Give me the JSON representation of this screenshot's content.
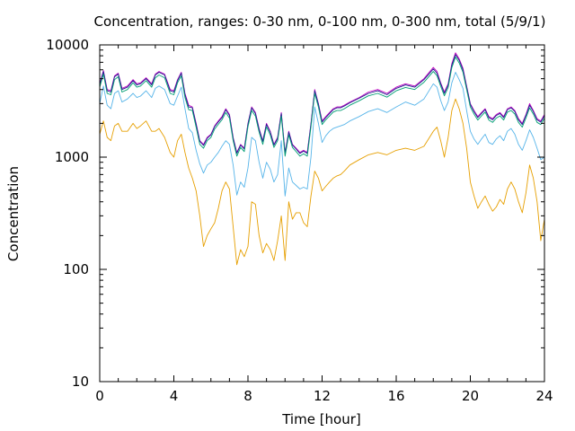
{
  "chart_data": {
    "type": "line",
    "title": "Concentration, ranges: 0-30 nm, 0-100 nm, 0-300 nm, total (5/9/1)",
    "xlabel": "Time [hour]",
    "ylabel": "Concentration",
    "xlim": [
      0,
      24
    ],
    "ylim": [
      10,
      10000
    ],
    "yscale": "log",
    "grid": false,
    "legend": "none",
    "x_ticks": [
      "0",
      "4",
      "8",
      "12",
      "16",
      "20",
      "24"
    ],
    "x_tick_values": [
      0,
      4,
      8,
      12,
      16,
      20,
      24
    ],
    "y_ticks": [
      "10",
      "100",
      "1000",
      "10000"
    ],
    "y_tick_values": [
      10,
      100,
      1000,
      10000
    ],
    "x": [
      0,
      0.2,
      0.4,
      0.6,
      0.8,
      1.0,
      1.2,
      1.5,
      1.8,
      2.0,
      2.2,
      2.5,
      2.8,
      3.0,
      3.2,
      3.5,
      3.8,
      4.0,
      4.2,
      4.4,
      4.6,
      4.8,
      5.0,
      5.2,
      5.4,
      5.6,
      5.8,
      6.0,
      6.2,
      6.4,
      6.6,
      6.8,
      7.0,
      7.2,
      7.4,
      7.6,
      7.8,
      8.0,
      8.2,
      8.4,
      8.6,
      8.8,
      9.0,
      9.2,
      9.4,
      9.6,
      9.8,
      10.0,
      10.2,
      10.4,
      10.6,
      10.8,
      11.0,
      11.2,
      11.4,
      11.6,
      11.8,
      12.0,
      12.2,
      12.4,
      12.6,
      12.8,
      13.0,
      13.2,
      13.5,
      14.0,
      14.5,
      15.0,
      15.5,
      16.0,
      16.5,
      17.0,
      17.5,
      18.0,
      18.2,
      18.4,
      18.6,
      18.8,
      19.0,
      19.2,
      19.4,
      19.6,
      19.8,
      20.0,
      20.2,
      20.4,
      20.6,
      20.8,
      21.0,
      21.2,
      21.4,
      21.6,
      21.8,
      22.0,
      22.2,
      22.4,
      22.6,
      22.8,
      23.0,
      23.2,
      23.4,
      23.6,
      23.8,
      24.0
    ],
    "series": [
      {
        "color": "#c000c0",
        "values": [
          4500,
          5900,
          4000,
          3900,
          5300,
          5600,
          4100,
          4300,
          4900,
          4500,
          4600,
          5100,
          4500,
          5500,
          5800,
          5500,
          4000,
          3900,
          4900,
          5700,
          3700,
          2900,
          2800,
          2000,
          1400,
          1300,
          1500,
          1600,
          1900,
          2100,
          2300,
          2700,
          2400,
          1500,
          1100,
          1300,
          1200,
          2000,
          2800,
          2500,
          1800,
          1400,
          2000,
          1700,
          1300,
          1500,
          2500,
          1100,
          1700,
          1300,
          1200,
          1100,
          1150,
          1100,
          2000,
          4000,
          3000,
          2100,
          2300,
          2500,
          2700,
          2800,
          2800,
          2900,
          3100,
          3400,
          3800,
          4000,
          3700,
          4200,
          4500,
          4300,
          5000,
          6300,
          5800,
          4600,
          3800,
          4500,
          6800,
          8500,
          7500,
          6200,
          4300,
          3000,
          2600,
          2300,
          2500,
          2700,
          2300,
          2200,
          2400,
          2500,
          2300,
          2700,
          2800,
          2600,
          2200,
          2000,
          2400,
          3000,
          2600,
          2200,
          2100,
          2400
        ]
      },
      {
        "color": "#202090",
        "values": [
          4400,
          5800,
          3900,
          3800,
          5200,
          5500,
          4000,
          4200,
          4800,
          4400,
          4500,
          5000,
          4400,
          5400,
          5700,
          5400,
          3900,
          3800,
          4800,
          5600,
          3600,
          2800,
          2750,
          1950,
          1380,
          1270,
          1470,
          1580,
          1870,
          2060,
          2250,
          2650,
          2350,
          1470,
          1080,
          1280,
          1180,
          1970,
          2750,
          2450,
          1760,
          1380,
          1960,
          1670,
          1280,
          1470,
          2450,
          1080,
          1670,
          1280,
          1180,
          1080,
          1130,
          1080,
          1960,
          3900,
          2950,
          2050,
          2250,
          2450,
          2650,
          2750,
          2750,
          2850,
          3050,
          3350,
          3700,
          3900,
          3600,
          4100,
          4400,
          4200,
          4900,
          6100,
          5600,
          4500,
          3700,
          4400,
          6600,
          8200,
          7300,
          6000,
          4200,
          2950,
          2550,
          2250,
          2450,
          2650,
          2250,
          2150,
          2350,
          2450,
          2250,
          2650,
          2750,
          2550,
          2150,
          1950,
          2350,
          2900,
          2550,
          2150,
          2050,
          2350
        ]
      },
      {
        "color": "#009e73",
        "values": [
          4200,
          5500,
          3700,
          3600,
          4900,
          5200,
          3800,
          4000,
          4600,
          4200,
          4300,
          4800,
          4200,
          5100,
          5400,
          5100,
          3700,
          3600,
          4600,
          5300,
          3400,
          2650,
          2600,
          1850,
          1300,
          1200,
          1400,
          1500,
          1780,
          1960,
          2150,
          2500,
          2230,
          1400,
          1020,
          1220,
          1120,
          1870,
          2600,
          2320,
          1670,
          1300,
          1860,
          1580,
          1220,
          1400,
          2320,
          1020,
          1580,
          1220,
          1120,
          1020,
          1070,
          1020,
          1860,
          3700,
          2800,
          1950,
          2150,
          2330,
          2520,
          2600,
          2600,
          2700,
          2900,
          3180,
          3520,
          3700,
          3420,
          3900,
          4180,
          4000,
          4650,
          5800,
          5320,
          4280,
          3520,
          4180,
          6270,
          7800,
          6900,
          5700,
          4000,
          2800,
          2420,
          2140,
          2330,
          2520,
          2140,
          2040,
          2230,
          2330,
          2140,
          2520,
          2600,
          2420,
          2040,
          1850,
          2230,
          2750,
          2420,
          2040,
          1950,
          2230
        ]
      },
      {
        "color": "#56b4e9",
        "values": [
          3000,
          4300,
          2900,
          2700,
          3700,
          3900,
          3100,
          3300,
          3700,
          3400,
          3500,
          3900,
          3400,
          4100,
          4300,
          4000,
          3000,
          2900,
          3500,
          4200,
          2700,
          1800,
          1650,
          1150,
          870,
          720,
          850,
          900,
          1000,
          1100,
          1250,
          1400,
          1300,
          850,
          460,
          600,
          540,
          800,
          1500,
          1400,
          900,
          650,
          900,
          780,
          600,
          700,
          1400,
          450,
          800,
          600,
          560,
          520,
          540,
          520,
          1000,
          2800,
          2000,
          1350,
          1550,
          1700,
          1800,
          1850,
          1900,
          1950,
          2100,
          2300,
          2550,
          2700,
          2500,
          2800,
          3100,
          2900,
          3300,
          4500,
          4200,
          3200,
          2600,
          3100,
          4600,
          5700,
          4900,
          4100,
          2600,
          1700,
          1450,
          1300,
          1450,
          1600,
          1350,
          1300,
          1450,
          1550,
          1400,
          1700,
          1800,
          1600,
          1300,
          1150,
          1400,
          1750,
          1500,
          1200,
          950,
          1000
        ]
      },
      {
        "color": "#e69f00",
        "values": [
          1600,
          2100,
          1500,
          1400,
          1900,
          2000,
          1700,
          1700,
          2000,
          1800,
          1900,
          2100,
          1700,
          1700,
          1800,
          1500,
          1100,
          1000,
          1400,
          1600,
          1100,
          800,
          650,
          500,
          300,
          160,
          200,
          230,
          260,
          350,
          500,
          600,
          520,
          240,
          110,
          150,
          130,
          160,
          400,
          380,
          200,
          140,
          170,
          150,
          120,
          180,
          300,
          120,
          400,
          280,
          320,
          320,
          260,
          240,
          450,
          750,
          650,
          500,
          550,
          600,
          650,
          680,
          700,
          750,
          850,
          950,
          1050,
          1100,
          1050,
          1150,
          1200,
          1150,
          1250,
          1700,
          1850,
          1400,
          1000,
          1500,
          2600,
          3300,
          2700,
          2000,
          1200,
          600,
          450,
          350,
          400,
          450,
          380,
          330,
          360,
          420,
          380,
          520,
          600,
          520,
          400,
          320,
          480,
          850,
          650,
          400,
          180,
          280
        ]
      }
    ]
  }
}
